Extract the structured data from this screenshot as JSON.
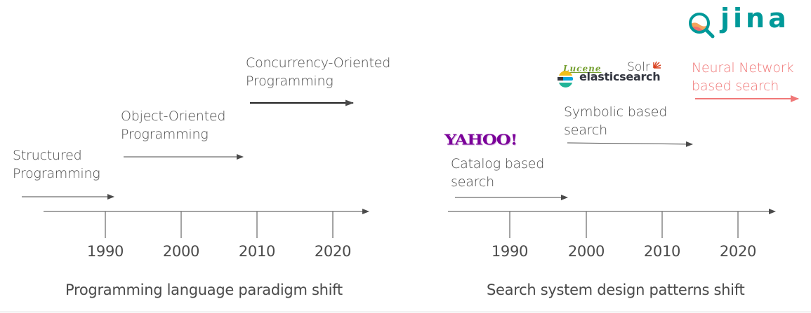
{
  "left_panel": {
    "caption": "Programming language paradigm shift",
    "ticks": [
      "1990",
      "2000",
      "2010",
      "2020"
    ],
    "phases": [
      {
        "line1": "Structured",
        "line2": "Programming"
      },
      {
        "line1": "Object-Oriented",
        "line2": "Programming"
      },
      {
        "line1": "Concurrency-Oriented",
        "line2": "Programming"
      }
    ]
  },
  "right_panel": {
    "caption": "Search system design patterns shift",
    "ticks": [
      "1990",
      "2000",
      "2010",
      "2020"
    ],
    "phases": [
      {
        "line1": "Catalog based",
        "line2": "search"
      },
      {
        "line1": "Symbolic based",
        "line2": "search"
      },
      {
        "line1": "Neural Network",
        "line2": "based search"
      }
    ],
    "logos": {
      "yahoo": "YAHOO!",
      "lucene": "Lucene",
      "solr": "Solr",
      "elasticsearch": "elasticsearch",
      "jina": "jina"
    }
  },
  "colors": {
    "text": "#4a4a4a",
    "neural_accent": "#f07878",
    "yahoo": "#7b0099",
    "lucene": "#76a032",
    "solr": "#d9411e",
    "jina": "#009999"
  }
}
